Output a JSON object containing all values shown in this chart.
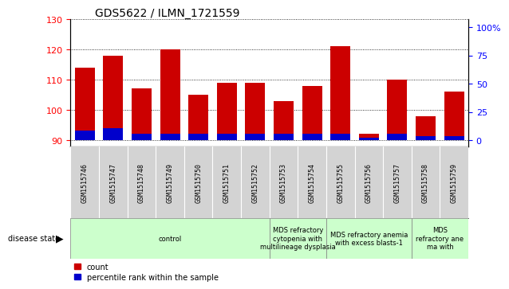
{
  "title": "GDS5622 / ILMN_1721559",
  "samples": [
    "GSM1515746",
    "GSM1515747",
    "GSM1515748",
    "GSM1515749",
    "GSM1515750",
    "GSM1515751",
    "GSM1515752",
    "GSM1515753",
    "GSM1515754",
    "GSM1515755",
    "GSM1515756",
    "GSM1515757",
    "GSM1515758",
    "GSM1515759"
  ],
  "count_values": [
    114,
    118,
    107,
    120,
    105,
    109,
    109,
    103,
    108,
    121,
    92,
    110,
    98,
    106
  ],
  "percentile_values": [
    8,
    10,
    5,
    5,
    5,
    5,
    5,
    5,
    5,
    5,
    2,
    5,
    3,
    3
  ],
  "baseline": 90,
  "ylim_left": [
    88,
    130
  ],
  "ylim_right": [
    -5,
    107
  ],
  "yticks_left": [
    90,
    100,
    110,
    120,
    130
  ],
  "yticks_right": [
    0,
    25,
    50,
    75,
    100
  ],
  "ytick_right_labels": [
    "0",
    "25",
    "50",
    "75",
    "100%"
  ],
  "bar_color_red": "#cc0000",
  "bar_color_blue": "#0000cc",
  "disease_groups": [
    {
      "label": "control",
      "start": 0,
      "end": 7
    },
    {
      "label": "MDS refractory\ncytopenia with\nmultilineage dysplasia",
      "start": 7,
      "end": 9
    },
    {
      "label": "MDS refractory anemia\nwith excess blasts-1",
      "start": 9,
      "end": 12
    },
    {
      "label": "MDS\nrefractory ane\nma with",
      "start": 12,
      "end": 14
    }
  ],
  "disease_state_label": "disease state",
  "legend_count": "count",
  "legend_percentile": "percentile rank within the sample",
  "tick_area_color": "#d3d3d3",
  "disease_area_color": "#ccffcc",
  "title_fontsize": 10,
  "tick_fontsize": 8,
  "sample_fontsize": 6,
  "disease_fontsize": 6
}
